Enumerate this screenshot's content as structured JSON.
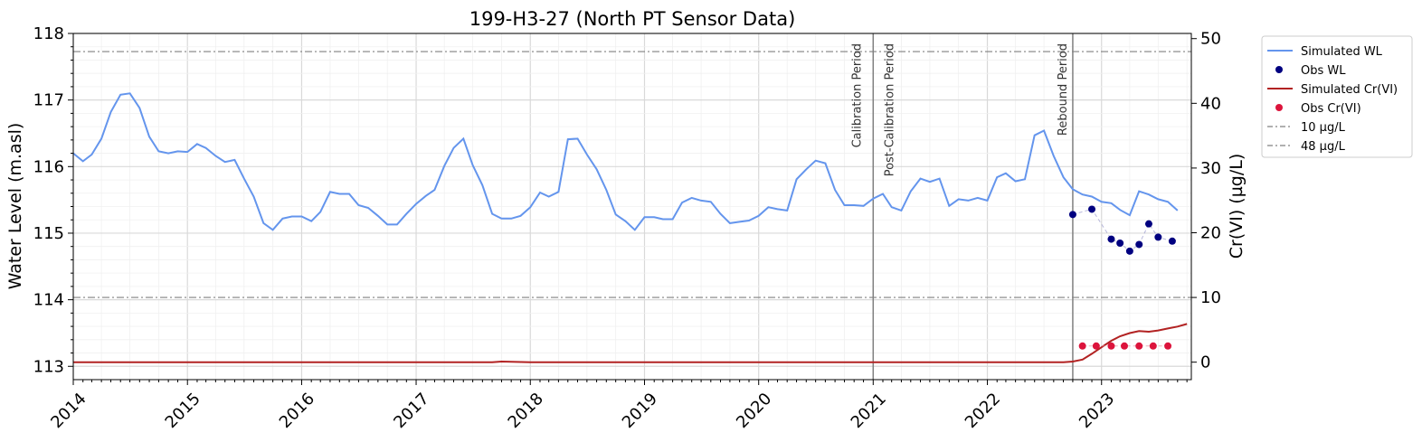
{
  "chart_data": {
    "type": "line",
    "title": "199-H3-27 (North PT Sensor Data)",
    "ylabel": "Water Level (m.asl)",
    "y2label": "Cr(VI) (µg/L)",
    "xlabel": "",
    "xlim": [
      "2014-01-01",
      "2023-10-15"
    ],
    "ylim": [
      112.8,
      118.0
    ],
    "y2lim": [
      -2.7,
      50.8
    ],
    "x_ticks": [
      "2014",
      "2015",
      "2016",
      "2017",
      "2018",
      "2019",
      "2020",
      "2021",
      "2022",
      "2023"
    ],
    "y_ticks": [
      "113",
      "114",
      "115",
      "116",
      "117",
      "118"
    ],
    "y2_ticks": [
      "0",
      "10",
      "20",
      "30",
      "40",
      "50"
    ],
    "grid": true,
    "legend_position": "outside-right",
    "legend": [
      "Simulated WL",
      "Obs WL",
      "Simulated Cr(VI)",
      "Obs Cr(VI)",
      "10 µg/L",
      "48 µg/L"
    ],
    "colors": {
      "simulated_wl": "#6495ED",
      "obs_wl": "#000080",
      "simulated_cr": "#B22222",
      "obs_cr": "#DC143C",
      "threshold": "#808080",
      "period_line": "#808080"
    },
    "periods": [
      {
        "label": "Calibration Period",
        "date": "2021-01-01",
        "line": true
      },
      {
        "label": "Post-Calibration Period",
        "date": "2021-01-01",
        "line": false
      },
      {
        "label": "Rebound Period",
        "date": "2022-10-01",
        "line": true
      }
    ],
    "thresholds": [
      {
        "name": "10 µg/L",
        "value": 10
      },
      {
        "name": "48 µg/L",
        "value": 48
      }
    ],
    "series": [
      {
        "name": "Simulated WL",
        "axis": "left",
        "style": "line",
        "x": [
          "2014-01-01",
          "2014-02-01",
          "2014-03-01",
          "2014-04-01",
          "2014-05-01",
          "2014-06-01",
          "2014-07-01",
          "2014-08-01",
          "2014-09-01",
          "2014-10-01",
          "2014-11-01",
          "2014-12-01",
          "2015-01-01",
          "2015-02-01",
          "2015-03-01",
          "2015-04-01",
          "2015-05-01",
          "2015-06-01",
          "2015-07-01",
          "2015-08-01",
          "2015-09-01",
          "2015-10-01",
          "2015-11-01",
          "2015-12-01",
          "2016-01-01",
          "2016-02-01",
          "2016-03-01",
          "2016-04-01",
          "2016-05-01",
          "2016-06-01",
          "2016-07-01",
          "2016-08-01",
          "2016-09-01",
          "2016-10-01",
          "2016-11-01",
          "2016-12-01",
          "2017-01-01",
          "2017-02-01",
          "2017-03-01",
          "2017-04-01",
          "2017-05-01",
          "2017-06-01",
          "2017-07-01",
          "2017-08-01",
          "2017-09-01",
          "2017-10-01",
          "2017-11-01",
          "2017-12-01",
          "2018-01-01",
          "2018-02-01",
          "2018-03-01",
          "2018-04-01",
          "2018-05-01",
          "2018-06-01",
          "2018-07-01",
          "2018-08-01",
          "2018-09-01",
          "2018-10-01",
          "2018-11-01",
          "2018-12-01",
          "2019-01-01",
          "2019-02-01",
          "2019-03-01",
          "2019-04-01",
          "2019-05-01",
          "2019-06-01",
          "2019-07-01",
          "2019-08-01",
          "2019-09-01",
          "2019-10-01",
          "2019-11-01",
          "2019-12-01",
          "2020-01-01",
          "2020-02-01",
          "2020-03-01",
          "2020-04-01",
          "2020-05-01",
          "2020-06-01",
          "2020-07-01",
          "2020-08-01",
          "2020-09-01",
          "2020-10-01",
          "2020-11-01",
          "2020-12-01",
          "2021-01-01",
          "2021-02-01",
          "2021-03-01",
          "2021-04-01",
          "2021-05-01",
          "2021-06-01",
          "2021-07-01",
          "2021-08-01",
          "2021-09-01",
          "2021-10-01",
          "2021-11-01",
          "2021-12-01",
          "2022-01-01",
          "2022-02-01",
          "2022-03-01",
          "2022-04-01",
          "2022-05-01",
          "2022-06-01",
          "2022-07-01",
          "2022-08-01",
          "2022-09-01",
          "2022-10-01",
          "2022-11-01",
          "2022-12-01",
          "2023-01-01",
          "2023-02-01",
          "2023-03-01",
          "2023-04-01",
          "2023-05-01",
          "2023-06-01",
          "2023-07-01",
          "2023-08-01",
          "2023-09-01"
        ],
        "values": [
          116.2,
          116.08,
          116.18,
          116.42,
          116.82,
          117.08,
          117.1,
          116.88,
          116.45,
          116.23,
          116.2,
          116.23,
          116.22,
          116.34,
          116.28,
          116.16,
          116.07,
          116.1,
          115.82,
          115.55,
          115.15,
          115.05,
          115.22,
          115.25,
          115.25,
          115.18,
          115.32,
          115.62,
          115.59,
          115.59,
          115.42,
          115.38,
          115.26,
          115.13,
          115.13,
          115.29,
          115.44,
          115.56,
          115.65,
          116.01,
          116.28,
          116.42,
          116.02,
          115.72,
          115.29,
          115.22,
          115.22,
          115.26,
          115.39,
          115.61,
          115.55,
          115.62,
          116.41,
          116.42,
          116.18,
          115.96,
          115.65,
          115.28,
          115.18,
          115.05,
          115.24,
          115.24,
          115.21,
          115.21,
          115.46,
          115.53,
          115.49,
          115.47,
          115.29,
          115.15,
          115.17,
          115.19,
          115.26,
          115.39,
          115.36,
          115.34,
          115.81,
          115.96,
          116.09,
          116.05,
          115.65,
          115.42,
          115.42,
          115.41,
          115.52,
          115.59,
          115.39,
          115.34,
          115.63,
          115.82,
          115.77,
          115.82,
          115.41,
          115.51,
          115.49,
          115.53,
          115.49,
          115.84,
          115.9,
          115.78,
          115.81,
          116.47,
          116.54,
          116.16,
          115.84,
          115.66,
          115.58,
          115.55,
          115.47,
          115.45,
          115.35,
          115.27,
          115.63,
          115.58,
          115.51,
          115.47,
          115.34
        ]
      },
      {
        "name": "Obs WL",
        "axis": "left",
        "style": "points",
        "x": [
          "2022-10-01",
          "2022-12-01",
          "2023-02-01",
          "2023-03-01",
          "2023-04-01",
          "2023-05-01",
          "2023-06-01",
          "2023-07-01",
          "2023-08-15"
        ],
        "values": [
          115.28,
          115.36,
          114.91,
          114.85,
          114.73,
          114.83,
          115.14,
          114.94,
          114.88
        ]
      },
      {
        "name": "Simulated Cr(VI)",
        "axis": "right",
        "style": "line",
        "x": [
          "2014-01-01",
          "2017-09-01",
          "2017-10-01",
          "2017-11-01",
          "2018-01-01",
          "2022-09-01",
          "2022-10-01",
          "2022-11-01",
          "2022-12-01",
          "2023-01-01",
          "2023-02-01",
          "2023-03-01",
          "2023-04-01",
          "2023-05-01",
          "2023-06-01",
          "2023-07-01",
          "2023-08-01",
          "2023-09-01",
          "2023-10-01"
        ],
        "values": [
          0.0,
          0.0,
          0.1,
          0.05,
          0.0,
          0.0,
          0.1,
          0.4,
          1.3,
          2.3,
          3.3,
          4.0,
          4.5,
          4.8,
          4.7,
          4.9,
          5.2,
          5.5,
          5.9
        ]
      },
      {
        "name": "Obs Cr(VI)",
        "axis": "right",
        "style": "points",
        "x": [
          "2022-11-01",
          "2022-12-15",
          "2023-02-01",
          "2023-03-15",
          "2023-05-01",
          "2023-06-15",
          "2023-08-01"
        ],
        "values": [
          2.5,
          2.5,
          2.5,
          2.5,
          2.5,
          2.5,
          2.5
        ]
      }
    ]
  }
}
